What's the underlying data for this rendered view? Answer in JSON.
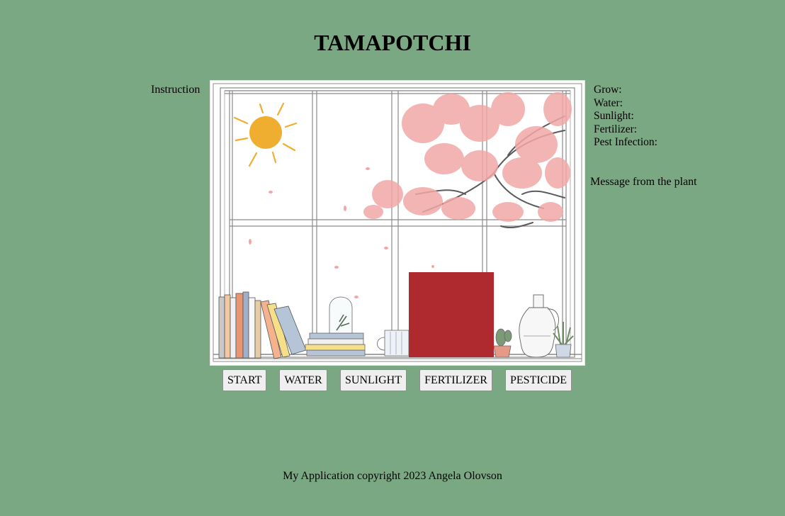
{
  "header": {
    "title": "TAMAPOTCHI"
  },
  "instruction": {
    "label": "Instruction"
  },
  "stats": {
    "grow_label": "Grow:",
    "water_label": "Water:",
    "sunlight_label": "Sunlight:",
    "fertilizer_label": "Fertilizer:",
    "pest_label": "Pest Infection:"
  },
  "message": {
    "label": "Message from the plant"
  },
  "buttons": {
    "start": "START",
    "water": "WATER",
    "sunlight": "SUNLIGHT",
    "fertilizer": "FERTILIZER",
    "pesticide": "PESTICIDE"
  },
  "scene": {
    "plant_color": "#ae2a2e",
    "sun_color": "#f0ae30",
    "blossom_color": "#f2a7a7"
  },
  "footer": {
    "text": "My Application copyright 2023 Angela Olovson"
  }
}
